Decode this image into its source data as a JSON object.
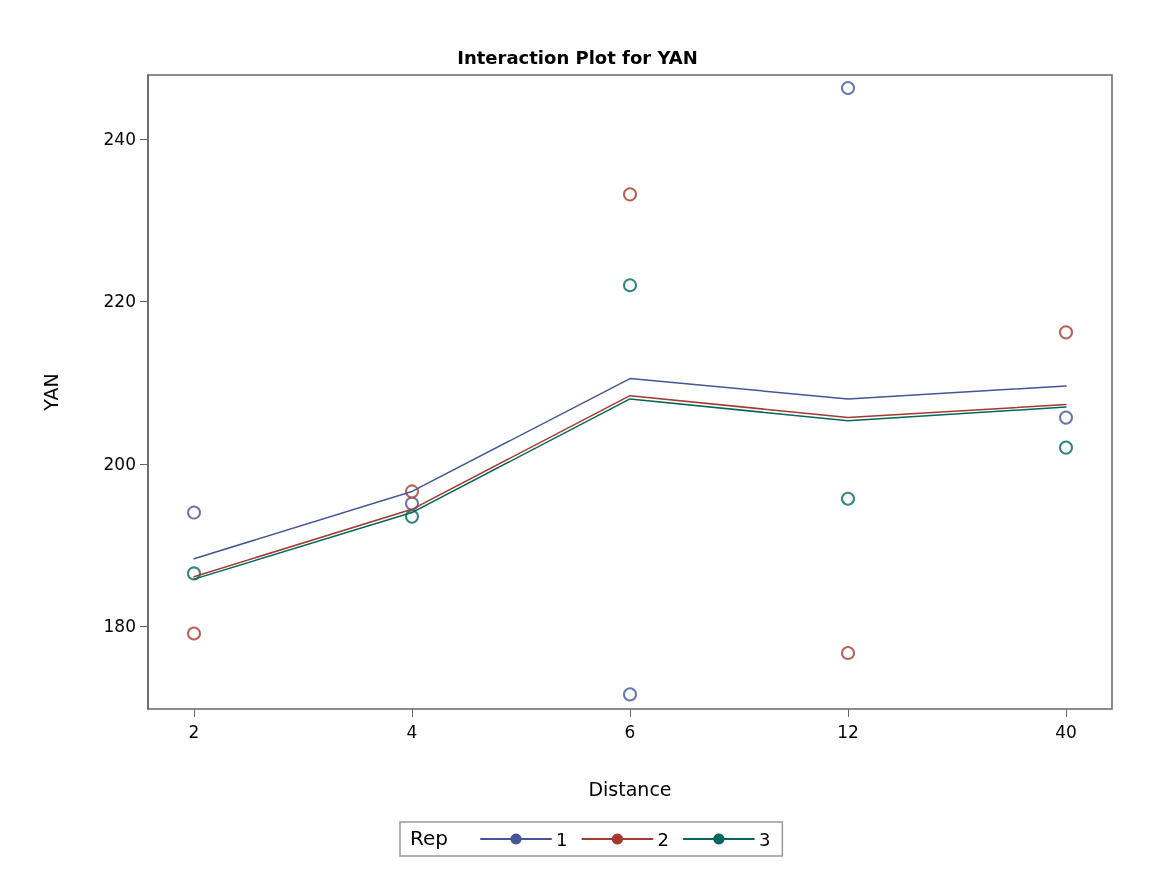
{
  "chart_data": {
    "type": "line",
    "title": "Interaction Plot for YAN",
    "xlabel": "Distance",
    "ylabel": "YAN",
    "legend_title": "Rep",
    "categories": [
      "2",
      "4",
      "6",
      "12",
      "40"
    ],
    "series": [
      {
        "name": "1",
        "color": "#445694",
        "marker": "none",
        "values": [
          188.3,
          196.6,
          210.5,
          208.0,
          209.6
        ]
      },
      {
        "name": "2",
        "color": "#a23a2e",
        "marker": "none",
        "values": [
          186.1,
          194.4,
          208.4,
          205.7,
          207.3
        ]
      },
      {
        "name": "3",
        "color": "#01665e",
        "marker": "none",
        "values": [
          185.8,
          194.0,
          208.0,
          205.3,
          207.0
        ]
      },
      {
        "color": "#445694",
        "type": "scatter",
        "values": [
          194.0,
          195.1,
          171.6,
          246.3,
          205.7
        ]
      },
      {
        "color": "#a23a2e",
        "type": "scatter",
        "values": [
          179.1,
          196.6,
          233.2,
          176.7,
          216.2
        ]
      },
      {
        "color": "#01665e",
        "type": "scatter",
        "values": [
          186.5,
          193.5,
          222.0,
          195.7,
          202.0
        ]
      }
    ],
    "ylim": [
      169.8,
      247.9
    ],
    "yticks": [
      180,
      200,
      220,
      240
    ],
    "grid": false,
    "legend": "bottom",
    "marker": "circle",
    "line_style": "solid"
  }
}
